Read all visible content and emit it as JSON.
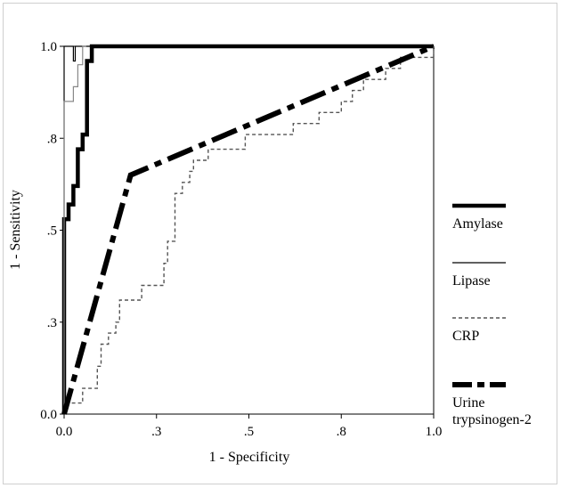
{
  "chart_data": {
    "type": "line",
    "title": "",
    "xlabel": "1 - Specificity",
    "ylabel": "1 - Sensitivity",
    "xlim": [
      0,
      1
    ],
    "ylim": [
      0,
      1
    ],
    "x_ticks": [
      {
        "value": 0,
        "label": "0.0"
      },
      {
        "value": 0.25,
        "label": ".3"
      },
      {
        "value": 0.5,
        "label": ".5"
      },
      {
        "value": 0.75,
        "label": ".8"
      },
      {
        "value": 1,
        "label": "1.0"
      }
    ],
    "y_ticks": [
      {
        "value": 0,
        "label": "0.0"
      },
      {
        "value": 0.25,
        "label": ".3"
      },
      {
        "value": 0.5,
        "label": ".5"
      },
      {
        "value": 0.75,
        "label": ".8"
      },
      {
        "value": 1,
        "label": "1.0"
      }
    ],
    "grid": false,
    "legend_position": "right",
    "series": [
      {
        "name": "Amylase",
        "color": "#000000",
        "style": "thick-solid",
        "points": [
          [
            0,
            0
          ],
          [
            0,
            0.53
          ],
          [
            0.012,
            0.53
          ],
          [
            0.012,
            0.57
          ],
          [
            0.025,
            0.57
          ],
          [
            0.025,
            0.62
          ],
          [
            0.037,
            0.62
          ],
          [
            0.037,
            0.72
          ],
          [
            0.05,
            0.72
          ],
          [
            0.05,
            0.76
          ],
          [
            0.062,
            0.76
          ],
          [
            0.062,
            0.96
          ],
          [
            0.075,
            0.96
          ],
          [
            0.075,
            1
          ],
          [
            1,
            1
          ]
        ]
      },
      {
        "name": "Lipase",
        "color": "#000000",
        "style": "thin-solid",
        "points": [
          [
            0,
            0
          ],
          [
            0,
            1
          ],
          [
            0.025,
            1
          ],
          [
            0.025,
            0.96
          ],
          [
            0.03,
            0.96
          ],
          [
            0.03,
            1
          ],
          [
            1,
            1
          ]
        ]
      },
      {
        "name": "Lipase",
        "color": "#888888",
        "style": "thin-gray",
        "points": [
          [
            0,
            0
          ],
          [
            0,
            0.85
          ],
          [
            0.025,
            0.85
          ],
          [
            0.025,
            0.89
          ],
          [
            0.037,
            0.89
          ],
          [
            0.037,
            0.95
          ],
          [
            0.05,
            0.95
          ],
          [
            0.05,
            1
          ],
          [
            0.06,
            1
          ]
        ]
      },
      {
        "name": "CRP",
        "color": "#555555",
        "style": "dashed",
        "points": [
          [
            0,
            0
          ],
          [
            0,
            0.03
          ],
          [
            0.05,
            0.03
          ],
          [
            0.05,
            0.07
          ],
          [
            0.09,
            0.07
          ],
          [
            0.09,
            0.13
          ],
          [
            0.1,
            0.13
          ],
          [
            0.1,
            0.19
          ],
          [
            0.12,
            0.19
          ],
          [
            0.12,
            0.22
          ],
          [
            0.14,
            0.22
          ],
          [
            0.14,
            0.25
          ],
          [
            0.15,
            0.25
          ],
          [
            0.15,
            0.31
          ],
          [
            0.21,
            0.31
          ],
          [
            0.21,
            0.35
          ],
          [
            0.27,
            0.35
          ],
          [
            0.27,
            0.41
          ],
          [
            0.28,
            0.41
          ],
          [
            0.28,
            0.47
          ],
          [
            0.3,
            0.47
          ],
          [
            0.3,
            0.6
          ],
          [
            0.32,
            0.6
          ],
          [
            0.32,
            0.63
          ],
          [
            0.34,
            0.63
          ],
          [
            0.34,
            0.66
          ],
          [
            0.35,
            0.66
          ],
          [
            0.35,
            0.69
          ],
          [
            0.39,
            0.69
          ],
          [
            0.39,
            0.72
          ],
          [
            0.49,
            0.72
          ],
          [
            0.49,
            0.76
          ],
          [
            0.62,
            0.76
          ],
          [
            0.62,
            0.79
          ],
          [
            0.69,
            0.79
          ],
          [
            0.69,
            0.82
          ],
          [
            0.75,
            0.82
          ],
          [
            0.75,
            0.85
          ],
          [
            0.78,
            0.85
          ],
          [
            0.78,
            0.88
          ],
          [
            0.81,
            0.88
          ],
          [
            0.81,
            0.91
          ],
          [
            0.87,
            0.91
          ],
          [
            0.87,
            0.94
          ],
          [
            0.91,
            0.94
          ],
          [
            0.91,
            0.97
          ],
          [
            1,
            0.97
          ],
          [
            1,
            1
          ]
        ]
      },
      {
        "name": "Urine trypsinogen-2",
        "color": "#000000",
        "style": "thick-dashdot",
        "points": [
          [
            0,
            0
          ],
          [
            0.18,
            0.65
          ],
          [
            1,
            1
          ]
        ]
      }
    ],
    "legend": [
      {
        "label": "Amylase",
        "style": "thick-solid"
      },
      {
        "label": "Lipase",
        "style": "thin-solid"
      },
      {
        "label": "CRP",
        "style": "dashed"
      },
      {
        "label": "Urine trypsinogen-2",
        "label_lines": [
          "Urine",
          "trypsinogen-2"
        ],
        "style": "thick-dashdot"
      }
    ]
  }
}
